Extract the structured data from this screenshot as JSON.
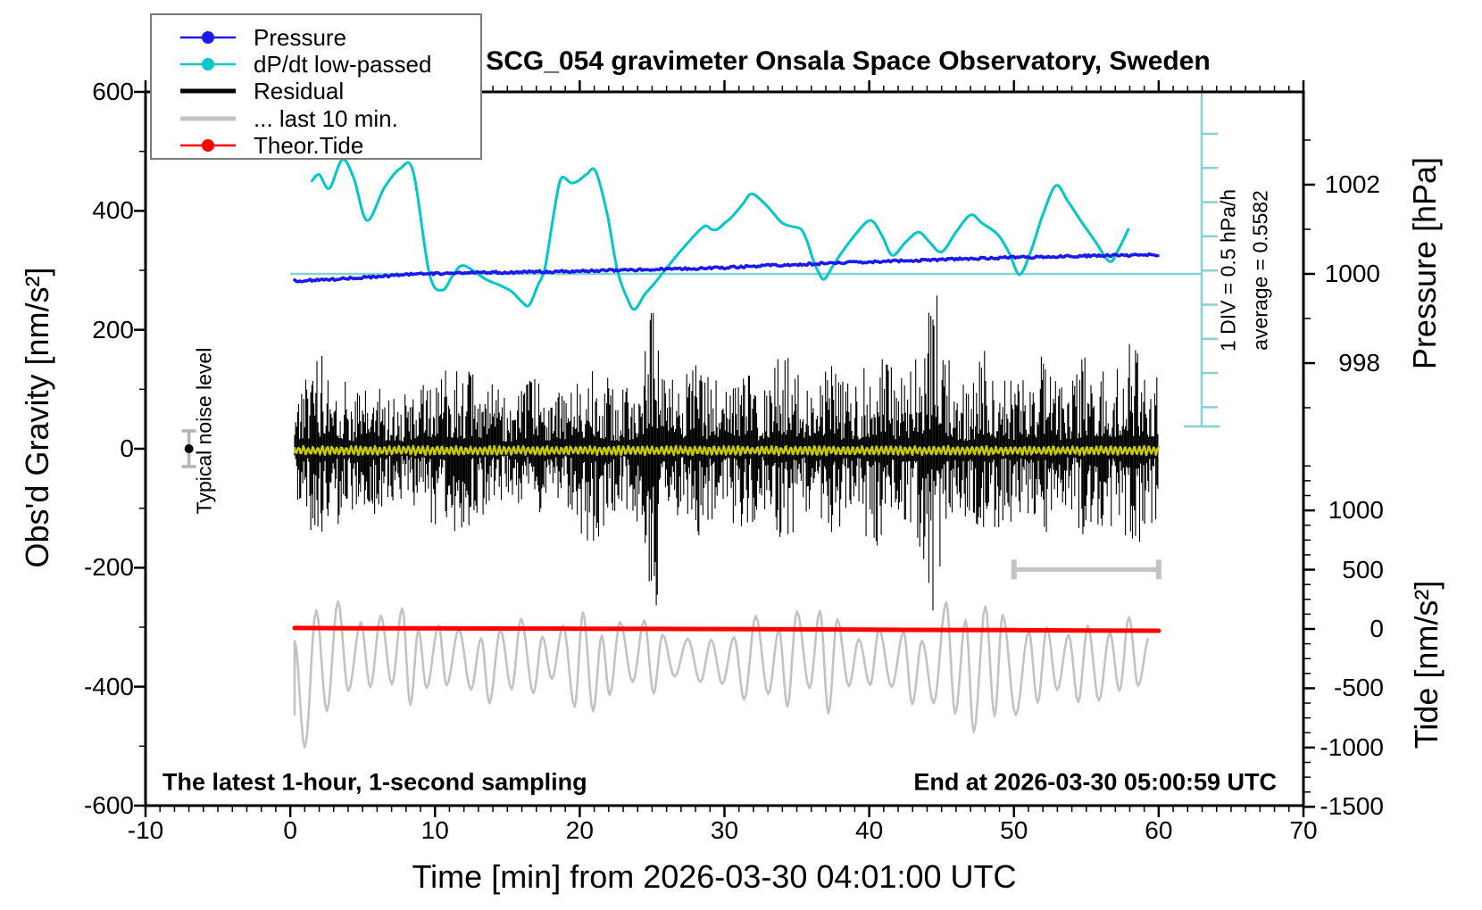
{
  "title": "SCG_054 gravimeter Onsala Space Observatory, Sweden",
  "legend": {
    "items": [
      {
        "label": "Pressure",
        "color": "#1a1af0",
        "lw": 2.5,
        "marker": true
      },
      {
        "label": "dP/dt low-passed",
        "color": "#00c8c8",
        "lw": 2.5,
        "marker": true
      },
      {
        "label": "Residual",
        "color": "#000000",
        "lw": 5,
        "marker": false
      },
      {
        "label": "... last 10 min.",
        "color": "#c3c3c3",
        "lw": 5,
        "marker": false
      },
      {
        "label": "Theor.Tide",
        "color": "#ff0000",
        "lw": 2.5,
        "marker": true
      }
    ]
  },
  "annotations": {
    "noise_label": "Typical noise level",
    "div_label": "1 DIV = 0.5 hPa/h",
    "average_label": "average = 0.5582",
    "sampling_note": "The latest 1-hour, 1-second sampling",
    "end_note": "End at 2026-03-30 05:00:59 UTC"
  },
  "chart_data": {
    "type": "line",
    "title": "SCG_054 gravimeter Onsala Space Observatory, Sweden",
    "x_axis": {
      "label": "Time [min] from 2026-03-30 04:01:00 UTC",
      "min": -10,
      "max": 70,
      "major_ticks": [
        -10,
        0,
        10,
        20,
        30,
        40,
        50,
        60,
        70
      ],
      "minor_step": 1
    },
    "y_axis_gravity": {
      "label": "Obs'd Gravity [nm/s²]",
      "min": -600,
      "max": 600,
      "major_ticks": [
        600,
        400,
        200,
        0,
        -200,
        -400,
        -600
      ],
      "minor_step": 100
    },
    "y_axis_pressure": {
      "label": "Pressure [hPa]",
      "major_ticks": [
        1002,
        1000,
        998
      ],
      "minor_ticks": [
        1003,
        1001,
        999,
        997
      ]
    },
    "y_axis_tide": {
      "label": "Tide [nm/s²]",
      "major_ticks": [
        1000,
        500,
        0,
        -500,
        -1000,
        -1500
      ],
      "minor_step": 125,
      "minor_min": -1500,
      "minor_max": 1375
    },
    "series": {
      "dpdt_average_hpa_per_h": 0.5582,
      "dpdt_div_hpa_per_h": 0.5,
      "pressure_hpa": [
        [
          0.3,
          999.84
        ],
        [
          1,
          999.85
        ],
        [
          2,
          999.86
        ],
        [
          3,
          999.88
        ],
        [
          4,
          999.9
        ],
        [
          5,
          999.92
        ],
        [
          6,
          999.94
        ],
        [
          7,
          999.96
        ],
        [
          8,
          999.99
        ],
        [
          9,
          1000.0
        ],
        [
          10,
          1000.01
        ],
        [
          12,
          1000.02
        ],
        [
          14,
          1000.03
        ],
        [
          16,
          1000.04
        ],
        [
          18,
          1000.05
        ],
        [
          20,
          1000.06
        ],
        [
          22,
          1000.08
        ],
        [
          24,
          1000.09
        ],
        [
          26,
          1000.11
        ],
        [
          28,
          1000.12
        ],
        [
          30,
          1000.14
        ],
        [
          32,
          1000.17
        ],
        [
          34,
          1000.2
        ],
        [
          36,
          1000.22
        ],
        [
          38,
          1000.25
        ],
        [
          40,
          1000.27
        ],
        [
          42,
          1000.29
        ],
        [
          44,
          1000.31
        ],
        [
          46,
          1000.33
        ],
        [
          48,
          1000.35
        ],
        [
          50,
          1000.37
        ],
        [
          52,
          1000.38
        ],
        [
          54,
          1000.4
        ],
        [
          56,
          1000.41
        ],
        [
          58,
          1000.42
        ],
        [
          60,
          1000.43
        ]
      ],
      "dpdt_hpa_per_h": [
        [
          1.5,
          1.92
        ],
        [
          2.0,
          2.01
        ],
        [
          2.7,
          1.81
        ],
        [
          3.6,
          2.23
        ],
        [
          4.4,
          1.95
        ],
        [
          5.3,
          1.34
        ],
        [
          6.5,
          1.82
        ],
        [
          7.6,
          2.1
        ],
        [
          8.5,
          2.05
        ],
        [
          9.6,
          0.57
        ],
        [
          10.5,
          0.32
        ],
        [
          11.3,
          0.56
        ],
        [
          12.0,
          0.68
        ],
        [
          13.5,
          0.48
        ],
        [
          14.5,
          0.39
        ],
        [
          15.3,
          0.3
        ],
        [
          16.0,
          0.15
        ],
        [
          16.5,
          0.1
        ],
        [
          17.1,
          0.39
        ],
        [
          17.6,
          0.65
        ],
        [
          18.2,
          1.43
        ],
        [
          18.7,
          1.95
        ],
        [
          19.4,
          1.89
        ],
        [
          19.9,
          1.92
        ],
        [
          20.5,
          2.02
        ],
        [
          21.1,
          2.06
        ],
        [
          21.9,
          1.43
        ],
        [
          22.6,
          0.61
        ],
        [
          23.3,
          0.19
        ],
        [
          23.8,
          0.04
        ],
        [
          24.5,
          0.26
        ],
        [
          25.2,
          0.43
        ],
        [
          26.8,
          0.85
        ],
        [
          28.5,
          1.24
        ],
        [
          29.1,
          1.21
        ],
        [
          29.5,
          1.21
        ],
        [
          30.0,
          1.3
        ],
        [
          30.5,
          1.39
        ],
        [
          31.3,
          1.59
        ],
        [
          31.9,
          1.73
        ],
        [
          32.9,
          1.56
        ],
        [
          33.8,
          1.34
        ],
        [
          34.2,
          1.28
        ],
        [
          34.7,
          1.25
        ],
        [
          35.3,
          1.21
        ],
        [
          35.7,
          1.04
        ],
        [
          36.1,
          0.78
        ],
        [
          36.5,
          0.58
        ],
        [
          36.9,
          0.48
        ],
        [
          37.5,
          0.68
        ],
        [
          38.1,
          0.87
        ],
        [
          39.1,
          1.15
        ],
        [
          40.1,
          1.34
        ],
        [
          40.9,
          1.11
        ],
        [
          41.6,
          0.83
        ],
        [
          42.5,
          1.02
        ],
        [
          43.4,
          1.17
        ],
        [
          44.1,
          1.04
        ],
        [
          45.0,
          0.88
        ],
        [
          46.0,
          1.17
        ],
        [
          47.0,
          1.42
        ],
        [
          47.8,
          1.3
        ],
        [
          48.9,
          1.13
        ],
        [
          49.7,
          0.85
        ],
        [
          50.4,
          0.55
        ],
        [
          51.2,
          0.91
        ],
        [
          52.0,
          1.43
        ],
        [
          52.9,
          1.85
        ],
        [
          53.7,
          1.63
        ],
        [
          54.6,
          1.34
        ],
        [
          55.6,
          1.04
        ],
        [
          56.6,
          0.74
        ],
        [
          57.2,
          0.91
        ],
        [
          57.9,
          1.21
        ]
      ],
      "theor_tide_nm_s2": [
        [
          0.3,
          8
        ],
        [
          5,
          6
        ],
        [
          10,
          5
        ],
        [
          15,
          4
        ],
        [
          20,
          2
        ],
        [
          25,
          1
        ],
        [
          30,
          -1
        ],
        [
          35,
          -3
        ],
        [
          40,
          -6
        ],
        [
          45,
          -8
        ],
        [
          50,
          -10
        ],
        [
          55,
          -13
        ],
        [
          60,
          -15
        ]
      ],
      "residual_envelope_nm_s2": [
        [
          0.3,
          90
        ],
        [
          1,
          115
        ],
        [
          2,
          170
        ],
        [
          3,
          150
        ],
        [
          4,
          110
        ],
        [
          5,
          95
        ],
        [
          6,
          120
        ],
        [
          7,
          100
        ],
        [
          8,
          92
        ],
        [
          9,
          110
        ],
        [
          10,
          130
        ],
        [
          11,
          160
        ],
        [
          12,
          140
        ],
        [
          13,
          118
        ],
        [
          14,
          108
        ],
        [
          15,
          95
        ],
        [
          16,
          100
        ],
        [
          17,
          130
        ],
        [
          18,
          112
        ],
        [
          19,
          92
        ],
        [
          20,
          140
        ],
        [
          21,
          168
        ],
        [
          22,
          120
        ],
        [
          23,
          100
        ],
        [
          24,
          135
        ],
        [
          24.8,
          230
        ],
        [
          25.2,
          300
        ],
        [
          25.6,
          210
        ],
        [
          26,
          125
        ],
        [
          27,
          110
        ],
        [
          28,
          165
        ],
        [
          29,
          120
        ],
        [
          30,
          112
        ],
        [
          31,
          140
        ],
        [
          32,
          122
        ],
        [
          33,
          102
        ],
        [
          34,
          190
        ],
        [
          35,
          130
        ],
        [
          36,
          112
        ],
        [
          37,
          170
        ],
        [
          38,
          130
        ],
        [
          39,
          112
        ],
        [
          40,
          160
        ],
        [
          41,
          165
        ],
        [
          42,
          122
        ],
        [
          43,
          132
        ],
        [
          44,
          230
        ],
        [
          44.5,
          305
        ],
        [
          45,
          180
        ],
        [
          46,
          122
        ],
        [
          47,
          112
        ],
        [
          48,
          175
        ],
        [
          49,
          132
        ],
        [
          50,
          122
        ],
        [
          51,
          140
        ],
        [
          52,
          160
        ],
        [
          53,
          122
        ],
        [
          54,
          112
        ],
        [
          55,
          170
        ],
        [
          56,
          142
        ],
        [
          57,
          132
        ],
        [
          58,
          180
        ],
        [
          59,
          152
        ],
        [
          60,
          125
        ]
      ],
      "residual_filtered_amp_nm_s2": 6,
      "last10min_center_tide": -270,
      "last10min_period_min": 1.45,
      "last10min_envelope_tide": [
        [
          0.3,
          200
        ],
        [
          0.8,
          700
        ],
        [
          1.5,
          790
        ],
        [
          2.5,
          680
        ],
        [
          3.5,
          450
        ],
        [
          5,
          340
        ],
        [
          6,
          420
        ],
        [
          8,
          450
        ],
        [
          10,
          380
        ],
        [
          12,
          340
        ],
        [
          14,
          450
        ],
        [
          16,
          380
        ],
        [
          18,
          300
        ],
        [
          20,
          380
        ],
        [
          22,
          420
        ],
        [
          24,
          340
        ],
        [
          26,
          270
        ],
        [
          27,
          230
        ],
        [
          28,
          230
        ],
        [
          30,
          300
        ],
        [
          32,
          340
        ],
        [
          34,
          420
        ],
        [
          36,
          450
        ],
        [
          38,
          380
        ],
        [
          40,
          300
        ],
        [
          42,
          340
        ],
        [
          44,
          380
        ],
        [
          45,
          450
        ],
        [
          46,
          530
        ],
        [
          47,
          640
        ],
        [
          48,
          720
        ],
        [
          49,
          680
        ],
        [
          50,
          570
        ],
        [
          51,
          450
        ],
        [
          52,
          420
        ],
        [
          53,
          340
        ],
        [
          54,
          300
        ],
        [
          55,
          380
        ],
        [
          56,
          420
        ],
        [
          57,
          380
        ],
        [
          58,
          420
        ],
        [
          59,
          340
        ],
        [
          60,
          300
        ]
      ],
      "noise_marker": {
        "t_min": -7,
        "gravity": 0,
        "error": 30
      },
      "last10min_bar": {
        "t_start": 50,
        "t_end": 60,
        "gravity": -203
      }
    },
    "colors": {
      "pressure": "#1a1af0",
      "dpdt": "#00c8c8",
      "dpdt_reference": "#85d2d2",
      "residual": "#000000",
      "residual_filtered": "#c9c900",
      "last10min": "#c3c3c3",
      "theor_tide": "#ff0000",
      "noise_errorbar": "#b4b4b4",
      "frame": "#000000"
    },
    "legend_position": "top-left-inside",
    "grid": false
  }
}
